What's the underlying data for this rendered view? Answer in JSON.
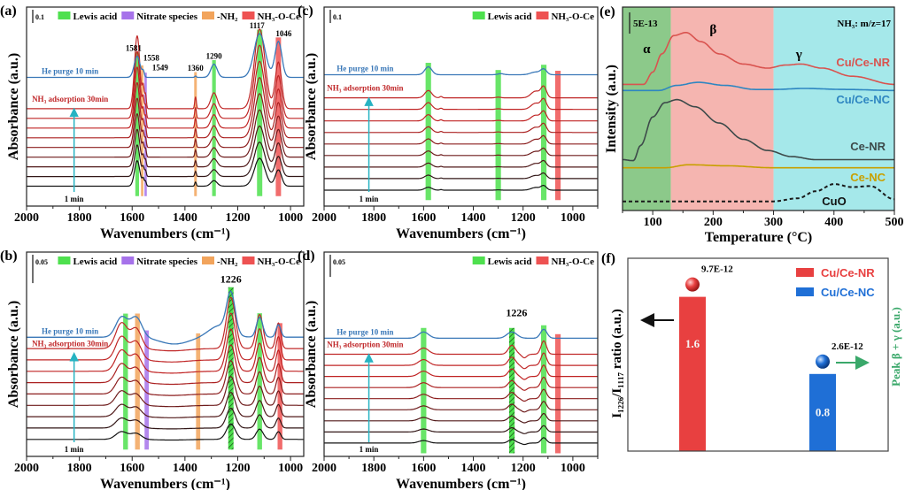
{
  "chart_data": [
    {
      "id": "a",
      "type": "line",
      "panel_label": "(a)",
      "xlabel": "Wavenumbers (cm⁻¹)",
      "ylabel": "Absorbance (a.u.)",
      "xlim": [
        2000,
        950
      ],
      "ylim": [
        0,
        1.5
      ],
      "xticks": [
        2000,
        1800,
        1600,
        1400,
        1200,
        1000
      ],
      "scale_bar": {
        "label": "0.1",
        "value": 0.1
      },
      "legend": [
        {
          "label": "Lewis acid",
          "kind": "lewis"
        },
        {
          "label": "Nitrate species",
          "kind": "nitrate"
        },
        {
          "label": "-NH₂",
          "kind": "nh2"
        },
        {
          "label": "NH₃-O-Ce",
          "kind": "nh3oce"
        }
      ],
      "purge_label": "He purge 10 min",
      "ads_label": "NH₃ adsorption 30min",
      "start_label": "1 min",
      "purge": {
        "baseline": 0.97,
        "peaks": [
          [
            1581,
            0.16,
            11
          ],
          [
            1558,
            0.04,
            4
          ],
          [
            1360,
            0.01,
            3
          ],
          [
            1290,
            0.1,
            12
          ],
          [
            1117,
            0.33,
            21
          ],
          [
            1046,
            0.27,
            13
          ]
        ]
      },
      "ads": {
        "count": 9,
        "baseline_start": 0.15,
        "baseline_step": 0.073,
        "min_scale": 0.35,
        "peaks": [
          [
            1581,
            0.55,
            10
          ],
          [
            1558,
            0.15,
            4
          ],
          [
            1549,
            0.1,
            3
          ],
          [
            1360,
            0.09,
            3
          ],
          [
            1290,
            0.12,
            12
          ],
          [
            1117,
            0.6,
            20
          ],
          [
            1046,
            0.35,
            12
          ]
        ]
      },
      "bands": [
        {
          "kind": "lewis",
          "center": 1581,
          "width": 14
        },
        {
          "kind": "nh2",
          "center": 1562,
          "width": 9
        },
        {
          "kind": "nitrate",
          "center": 1549,
          "width": 9
        },
        {
          "kind": "nh2",
          "center": 1360,
          "width": 10
        },
        {
          "kind": "lewis",
          "center": 1290,
          "width": 14
        },
        {
          "kind": "lewis",
          "center": 1117,
          "width": 20
        },
        {
          "kind": "nh3oce",
          "center": 1046,
          "width": 20
        }
      ],
      "peak_labels": [
        "1581",
        "1558",
        "1549",
        "1360",
        "1290",
        "1117",
        "1046"
      ]
    },
    {
      "id": "b",
      "type": "line",
      "panel_label": "(b)",
      "xlabel": "Wavenumbers (cm⁻¹)",
      "ylabel": "Absorbance (a.u.)",
      "xlim": [
        2000,
        950
      ],
      "ylim": [
        0,
        0.36
      ],
      "xticks": [
        2000,
        1800,
        1600,
        1400,
        1200,
        1000
      ],
      "scale_bar": {
        "label": "0.05",
        "value": 0.05
      },
      "legend": [
        {
          "label": "Lewis acid",
          "kind": "lewis"
        },
        {
          "label": "Nitrate species",
          "kind": "nitrate"
        },
        {
          "label": "-NH₂",
          "kind": "nh2"
        },
        {
          "label": "NH₃-O-Ce",
          "kind": "nh3oce"
        }
      ],
      "purge_label": "He purge 10 min",
      "ads_label": "NH₃ adsorption 30min",
      "start_label": "1 min",
      "purge": {
        "baseline": 0.21,
        "peaks": [
          [
            1640,
            0.035,
            22
          ],
          [
            1585,
            0.035,
            22
          ],
          [
            1440,
            -0.012,
            55
          ],
          [
            1270,
            0.02,
            40
          ],
          [
            1226,
            0.07,
            16
          ],
          [
            1117,
            0.035,
            12
          ],
          [
            1046,
            0.022,
            9
          ]
        ]
      },
      "ads": {
        "count": 9,
        "baseline_start": 0.03,
        "baseline_step": 0.02,
        "min_scale": 0.3,
        "peaks": [
          [
            1640,
            0.045,
            22
          ],
          [
            1585,
            0.035,
            20
          ],
          [
            1450,
            -0.004,
            60
          ],
          [
            1226,
            0.09,
            17
          ],
          [
            1117,
            0.06,
            13
          ],
          [
            1046,
            0.045,
            9
          ]
        ]
      },
      "bands": [
        {
          "kind": "lewis",
          "center": 1625,
          "width": 18
        },
        {
          "kind": "nh2",
          "center": 1580,
          "width": 18
        },
        {
          "kind": "nitrate",
          "center": 1545,
          "width": 16
        },
        {
          "kind": "nh2",
          "center": 1350,
          "width": 16
        },
        {
          "kind": "lewis-hatched",
          "center": 1226,
          "width": 20
        },
        {
          "kind": "lewis",
          "center": 1117,
          "width": 18
        },
        {
          "kind": "nh3oce",
          "center": 1040,
          "width": 18
        }
      ],
      "peak_labels": [
        "1226"
      ]
    },
    {
      "id": "c",
      "type": "line",
      "panel_label": "(c)",
      "xlabel": "Wavenumbers (cm⁻¹)",
      "ylabel": "Absorbance (a.u.)",
      "xlim": [
        2000,
        900
      ],
      "ylim": [
        0,
        1.5
      ],
      "xticks": [
        2000,
        1800,
        1600,
        1400,
        1200,
        1000
      ],
      "scale_bar": {
        "label": "0.1",
        "value": 0.1
      },
      "legend": [
        {
          "label": "Lewis acid",
          "kind": "lewis"
        },
        {
          "label": "NH₃-O-Ce",
          "kind": "nh3oce"
        }
      ],
      "purge_label": "He purge 10 min",
      "ads_label": "NH₃ adsorption 30min",
      "start_label": "1 min",
      "purge": {
        "baseline": 0.99,
        "peaks": [
          [
            1581,
            0.06,
            14
          ],
          [
            1290,
            0.008,
            12
          ],
          [
            1150,
            0.02,
            20
          ],
          [
            1117,
            0.04,
            12
          ]
        ]
      },
      "ads": {
        "count": 9,
        "baseline_start": 0.12,
        "baseline_step": 0.087,
        "min_scale": 0.4,
        "peaks": [
          [
            1581,
            0.055,
            14
          ],
          [
            1530,
            0.01,
            5
          ],
          [
            1300,
            0.005,
            10
          ],
          [
            1150,
            0.05,
            18
          ],
          [
            1117,
            0.08,
            11
          ]
        ]
      },
      "bands": [
        {
          "kind": "lewis",
          "center": 1581,
          "width": 22
        },
        {
          "kind": "lewis",
          "center": 1300,
          "width": 22
        },
        {
          "kind": "lewis",
          "center": 1117,
          "width": 22
        },
        {
          "kind": "nh3oce",
          "center": 1060,
          "width": 22
        }
      ],
      "peak_labels": []
    },
    {
      "id": "d",
      "type": "line",
      "panel_label": "(d)",
      "xlabel": "Wavenumbers (cm⁻¹)",
      "ylabel": "Absorbance (a.u.)",
      "xlim": [
        2000,
        900
      ],
      "ylim": [
        0,
        0.46
      ],
      "xticks": [
        2000,
        1800,
        1600,
        1400,
        1200,
        1000
      ],
      "scale_bar": {
        "label": "0.05",
        "value": 0.05
      },
      "legend": [
        {
          "label": "Lewis acid",
          "kind": "lewis"
        },
        {
          "label": "NH₃-O-Ce",
          "kind": "nh3oce"
        }
      ],
      "purge_label": "He purge 10 min",
      "ads_label": "NH₃ adsorption 30min",
      "start_label": "1 min",
      "purge": {
        "baseline": 0.266,
        "peaks": [
          [
            1600,
            0.014,
            20
          ],
          [
            1245,
            0.014,
            20
          ],
          [
            1117,
            0.02,
            13
          ]
        ]
      },
      "ads": {
        "count": 9,
        "baseline_start": 0.03,
        "baseline_step": 0.025,
        "min_scale": 0.4,
        "peaks": [
          [
            1600,
            0.014,
            20
          ],
          [
            1245,
            0.02,
            14
          ],
          [
            1195,
            -0.008,
            10
          ],
          [
            1117,
            0.03,
            11
          ]
        ]
      },
      "bands": [
        {
          "kind": "lewis",
          "center": 1600,
          "width": 22
        },
        {
          "kind": "lewis-hatched",
          "center": 1245,
          "width": 22
        },
        {
          "kind": "lewis",
          "center": 1117,
          "width": 22
        },
        {
          "kind": "nh3oce",
          "center": 1060,
          "width": 22
        }
      ],
      "peak_labels": [
        "1226"
      ]
    },
    {
      "id": "e",
      "type": "line",
      "panel_label": "(e)",
      "xlabel": "Temperature (°C)",
      "ylabel": "Intensity (a.u.)",
      "xlim": [
        50,
        500
      ],
      "ylim": [
        0,
        10
      ],
      "xticks": [
        100,
        200,
        300,
        400,
        500
      ],
      "scale_bar": {
        "label": "5E-13"
      },
      "annotation": "NH₃: m/z=17",
      "regions": [
        {
          "label": "α",
          "from": 50,
          "to": 130,
          "color": "#8cc98a"
        },
        {
          "label": "β",
          "from": 130,
          "to": 300,
          "color": "#f5b5b0"
        },
        {
          "label": "γ",
          "from": 300,
          "to": 500,
          "color": "#a5e8ea"
        }
      ],
      "series": [
        {
          "name": "Cu/Ce-NR",
          "color": "#d9534f",
          "dashed": false,
          "points": [
            [
              50,
              6.2
            ],
            [
              85,
              6.2
            ],
            [
              100,
              6.8
            ],
            [
              115,
              7.7
            ],
            [
              135,
              8.6
            ],
            [
              155,
              8.75
            ],
            [
              180,
              8.3
            ],
            [
              210,
              7.7
            ],
            [
              250,
              7.2
            ],
            [
              290,
              7.0
            ],
            [
              320,
              7.15
            ],
            [
              345,
              7.2
            ],
            [
              380,
              7.0
            ],
            [
              430,
              6.6
            ],
            [
              500,
              6.2
            ]
          ]
        },
        {
          "name": "Cu/Ce-NC",
          "color": "#2e86c1",
          "dashed": false,
          "points": [
            [
              50,
              5.9
            ],
            [
              110,
              5.9
            ],
            [
              140,
              6.15
            ],
            [
              175,
              6.3
            ],
            [
              220,
              6.15
            ],
            [
              270,
              5.95
            ],
            [
              300,
              5.95
            ],
            [
              350,
              6.0
            ],
            [
              420,
              5.95
            ],
            [
              500,
              5.9
            ]
          ]
        },
        {
          "name": "Ce-NR",
          "color": "#3d4a4a",
          "dashed": false,
          "points": [
            [
              50,
              2.5
            ],
            [
              68,
              2.45
            ],
            [
              80,
              3.2
            ],
            [
              100,
              4.6
            ],
            [
              120,
              5.3
            ],
            [
              140,
              5.45
            ],
            [
              170,
              5.1
            ],
            [
              210,
              4.3
            ],
            [
              250,
              3.5
            ],
            [
              290,
              2.95
            ],
            [
              330,
              2.65
            ],
            [
              370,
              2.5
            ],
            [
              500,
              2.5
            ]
          ]
        },
        {
          "name": "Ce-NC",
          "color": "#c8a000",
          "dashed": false,
          "points": [
            [
              50,
              2.1
            ],
            [
              120,
              2.1
            ],
            [
              160,
              2.25
            ],
            [
              220,
              2.2
            ],
            [
              300,
              2.1
            ],
            [
              500,
              2.1
            ]
          ]
        },
        {
          "name": "CuO",
          "color": "#1a1a1a",
          "dashed": true,
          "points": [
            [
              50,
              0.45
            ],
            [
              300,
              0.45
            ],
            [
              340,
              0.6
            ],
            [
              370,
              0.95
            ],
            [
              400,
              1.3
            ],
            [
              430,
              1.15
            ],
            [
              460,
              1.2
            ],
            [
              500,
              0.55
            ]
          ]
        }
      ]
    },
    {
      "id": "f",
      "type": "bar",
      "panel_label": "(f)",
      "categories": [
        "Cu/Ce-NR",
        "Cu/Ce-NC"
      ],
      "values": [
        1.6,
        0.8
      ],
      "value_labels": [
        "1.6",
        "0.8"
      ],
      "colors": [
        "#e84040",
        "#1f6fd6"
      ],
      "secondary_values": [
        9.7e-12,
        2.6e-12
      ],
      "secondary_labels": [
        "9.7E-12",
        "2.6E-12"
      ],
      "ylabel": "I₁₂₂₆/I₁₁₁₇ ratio (a.u.)",
      "ylabel_right": "Peak β + γ  (a.u.)",
      "ylim": [
        0,
        2.0
      ],
      "legend": [
        "Cu/Ce-NR",
        "Cu/Ce-NC"
      ]
    }
  ],
  "colors": {
    "lewis": "#4ee04e",
    "nitrate": "#a672ea",
    "nh2": "#f2a45c",
    "nh3oce": "#ee5252",
    "purge": "#3a78b8",
    "ads": "#c0282a",
    "arrow": "#27b3c2",
    "right_axis": "#3aa86a"
  }
}
